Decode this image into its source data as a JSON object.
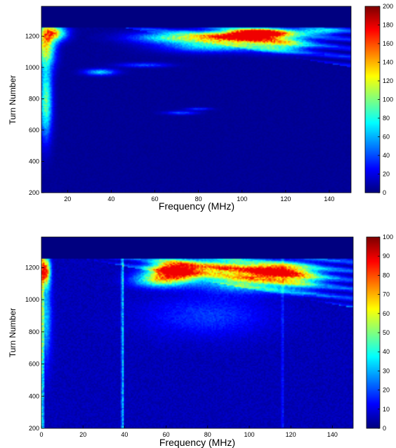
{
  "chart_data": [
    {
      "type": "heatmap",
      "xlabel": "Frequency (MHz)",
      "ylabel": "Turn Number",
      "xlim": [
        8,
        150
      ],
      "ylim": [
        200,
        1390
      ],
      "xticks": [
        20,
        40,
        60,
        80,
        100,
        120,
        140
      ],
      "yticks": [
        200,
        400,
        600,
        800,
        1000,
        1200
      ],
      "colorbar": {
        "min": 0,
        "max": 200,
        "ticks": [
          0,
          20,
          40,
          60,
          80,
          100,
          120,
          140,
          160,
          180,
          200
        ],
        "colormap": "jet"
      },
      "background_value": 5,
      "top_band": {
        "from_turn": 1255,
        "value": 0
      },
      "blobs": [
        {
          "x": 108,
          "y": 1220,
          "sx": 9,
          "sy": 20,
          "v": 200
        },
        {
          "x": 98,
          "y": 1190,
          "sx": 14,
          "sy": 30,
          "v": 150
        },
        {
          "x": 70,
          "y": 1190,
          "sx": 14,
          "sy": 25,
          "v": 90
        },
        {
          "x": 118,
          "y": 1150,
          "sx": 10,
          "sy": 35,
          "v": 90
        },
        {
          "x": 135,
          "y": 1230,
          "sx": 8,
          "sy": 15,
          "v": 70
        },
        {
          "x": 85,
          "y": 1130,
          "sx": 15,
          "sy": 25,
          "v": 60
        },
        {
          "x": 35,
          "y": 970,
          "sx": 5,
          "sy": 14,
          "v": 70
        },
        {
          "x": 10,
          "y": 1150,
          "sx": 3,
          "sy": 100,
          "v": 130
        },
        {
          "x": 10,
          "y": 780,
          "sx": 2,
          "sy": 160,
          "v": 100
        },
        {
          "x": 14,
          "y": 1220,
          "sx": 4,
          "sy": 35,
          "v": 120
        },
        {
          "x": 55,
          "y": 1015,
          "sx": 8,
          "sy": 10,
          "v": 40
        },
        {
          "x": 72,
          "y": 710,
          "sx": 5,
          "sy": 8,
          "v": 40
        },
        {
          "x": 80,
          "y": 735,
          "sx": 4,
          "sy": 6,
          "v": 35
        }
      ],
      "wedge": {
        "x0": 45,
        "y0": 1000,
        "x1": 150,
        "y1": 1255,
        "v": 30
      },
      "vlines": []
    },
    {
      "type": "heatmap",
      "xlabel": "Frequency (MHz)",
      "ylabel": "Turn Number",
      "xlim": [
        0,
        150
      ],
      "ylim": [
        200,
        1390
      ],
      "xticks": [
        0,
        20,
        40,
        60,
        80,
        100,
        120,
        140
      ],
      "yticks": [
        200,
        400,
        600,
        800,
        1000,
        1200
      ],
      "colorbar": {
        "min": 0,
        "max": 100,
        "ticks": [
          0,
          10,
          20,
          30,
          40,
          50,
          60,
          70,
          80,
          90,
          100
        ],
        "colormap": "jet"
      },
      "background_value": 6,
      "top_band": {
        "from_turn": 1255,
        "value": 0
      },
      "blobs": [
        {
          "x": 64,
          "y": 1180,
          "sx": 8,
          "sy": 45,
          "v": 100
        },
        {
          "x": 112,
          "y": 1180,
          "sx": 8,
          "sy": 30,
          "v": 75
        },
        {
          "x": 88,
          "y": 1200,
          "sx": 14,
          "sy": 35,
          "v": 60
        },
        {
          "x": 100,
          "y": 1120,
          "sx": 16,
          "sy": 45,
          "v": 50
        },
        {
          "x": 125,
          "y": 1150,
          "sx": 8,
          "sy": 50,
          "v": 40
        },
        {
          "x": 2,
          "y": 1180,
          "sx": 1.5,
          "sy": 60,
          "v": 85
        },
        {
          "x": 2,
          "y": 900,
          "sx": 2,
          "sy": 200,
          "v": 30
        },
        {
          "x": 55,
          "y": 1120,
          "sx": 8,
          "sy": 30,
          "v": 40
        },
        {
          "x": 80,
          "y": 900,
          "sx": 20,
          "sy": 90,
          "v": 14
        }
      ],
      "wedge": {
        "x0": 20,
        "y0": 950,
        "x1": 150,
        "y1": 1255,
        "v": 18
      },
      "vlines": [
        {
          "x": 39,
          "v": 35
        },
        {
          "x": 116,
          "v": 12
        },
        {
          "x": 0.6,
          "v": 45
        }
      ]
    }
  ]
}
